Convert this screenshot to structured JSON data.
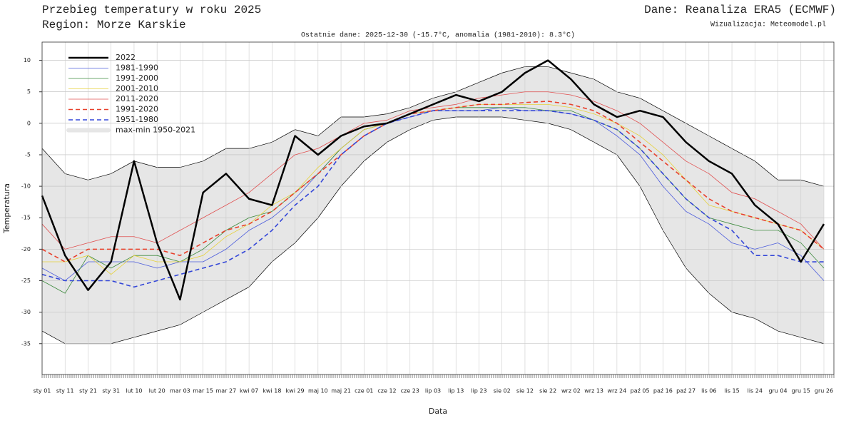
{
  "chart_data": {
    "type": "line",
    "title": "Przebieg temperatury w roku 2025",
    "region": "Region: Morze Karskie",
    "source": "Dane: Reanaliza ERA5 (ECMWF)",
    "credit": "Wizualizacja: Meteomodel.pl",
    "subtitle": "Ostatnie dane: 2025-12-30 (-15.7°C, anomalia (1981-2010): 8.3°C)",
    "y_label": "Temperatura",
    "x_label": "Data",
    "grid": true,
    "legend": "top-left",
    "ylim": [
      -39.9,
      12.9
    ],
    "yticks": [
      -35,
      -30,
      -25,
      -20,
      -15,
      -10,
      -5,
      0,
      5,
      10
    ],
    "categories": [
      "sty 01",
      "sty 11",
      "sty 21",
      "sty 31",
      "lut 10",
      "lut 20",
      "mar 03",
      "mar 15",
      "mar 27",
      "kwi 07",
      "kwi 18",
      "kwi 29",
      "maj 10",
      "maj 21",
      "cze 01",
      "cze 12",
      "cze 23",
      "lip 03",
      "lip 13",
      "lip 23",
      "sie 02",
      "sie 12",
      "sie 22",
      "wrz 02",
      "wrz 13",
      "wrz 24",
      "paź 05",
      "paź 16",
      "paź 27",
      "lis 06",
      "lis 15",
      "lis 24",
      "gru 04",
      "gru 15",
      "gru 26"
    ],
    "band": {
      "name": "max-min 1950-2021",
      "color": "#e6e6e6",
      "high": [
        -4,
        -8,
        -9,
        -8,
        -6,
        -7,
        -7,
        -6,
        -4,
        -4,
        -3,
        -1,
        -2,
        1,
        1,
        1.5,
        2.5,
        4,
        5,
        6.5,
        8,
        9,
        9,
        8,
        7,
        5,
        4,
        2,
        0,
        -2,
        -4,
        -6,
        -9,
        -9,
        -10
      ],
      "low": [
        -33,
        -35,
        -35,
        -35,
        -34,
        -33,
        -32,
        -30,
        -28,
        -26,
        -22,
        -19,
        -15,
        -10,
        -6,
        -3,
        -1,
        0.5,
        1,
        1,
        1,
        0.5,
        0,
        -1,
        -3,
        -5,
        -10,
        -17,
        -23,
        -27,
        -30,
        -31,
        -33,
        -34,
        -35
      ]
    },
    "series": [
      {
        "name": "2022",
        "color": "#000000",
        "width": 2.5,
        "dashed": false,
        "values": [
          -11.5,
          -21,
          -26.5,
          -22,
          -6,
          -19,
          -28,
          -11,
          -8,
          -12,
          -13,
          -2,
          -5,
          -2,
          -0.5,
          0,
          1.5,
          3,
          4.5,
          3.5,
          5,
          8,
          10,
          7,
          3,
          1,
          2,
          1,
          -3,
          -6,
          -8,
          -13,
          -16,
          -22,
          -16
        ]
      },
      {
        "name": "1981-1990",
        "color": "#4a5bdc",
        "width": 0.8,
        "dashed": false,
        "values": [
          -23,
          -25,
          -22,
          -22,
          -22,
          -23,
          -22,
          -22,
          -20,
          -17,
          -15,
          -12,
          -8,
          -4,
          -1,
          0,
          1,
          2,
          2,
          2,
          2.5,
          2,
          2,
          1.5,
          0.5,
          -2,
          -5,
          -10,
          -14,
          -16,
          -19,
          -20,
          -19,
          -21,
          -25
        ]
      },
      {
        "name": "1991-2000",
        "color": "#3c8a3c",
        "width": 0.8,
        "dashed": false,
        "values": [
          -25,
          -27,
          -21,
          -23,
          -21,
          -21,
          -22,
          -20,
          -17,
          -15,
          -14,
          -11,
          -8,
          -4,
          -1,
          0,
          1.5,
          2,
          2.5,
          2.5,
          2.5,
          2.5,
          2,
          2,
          0.5,
          -1,
          -4,
          -8,
          -12,
          -15,
          -16,
          -17,
          -17,
          -19,
          -23
        ]
      },
      {
        "name": "2001-2010",
        "color": "#e6d23c",
        "width": 0.8,
        "dashed": false,
        "values": [
          -22,
          -22,
          -21,
          -24,
          -21,
          -22,
          -22,
          -21,
          -18,
          -16,
          -13,
          -11,
          -7,
          -4,
          -1,
          0,
          1.5,
          2,
          2.5,
          3,
          3,
          3,
          3,
          2.5,
          1.5,
          0,
          -2,
          -5,
          -9,
          -13,
          -14,
          -15,
          -16,
          -17,
          -20
        ]
      },
      {
        "name": "2011-2020",
        "color": "#e05050",
        "width": 0.8,
        "dashed": false,
        "values": [
          -16,
          -20,
          -19,
          -18,
          -18,
          -19,
          -17,
          -15,
          -13,
          -11,
          -8,
          -5,
          -4,
          -2,
          0,
          0.5,
          2,
          2.5,
          3,
          4,
          4.5,
          5,
          5,
          4.5,
          3.5,
          2,
          0,
          -3,
          -6,
          -8,
          -11,
          -12,
          -14,
          -16,
          -20
        ]
      },
      {
        "name": "1991-2020",
        "color": "#e8412c",
        "width": 1.6,
        "dashed": true,
        "values": [
          -20,
          -22,
          -20,
          -20,
          -20,
          -20,
          -21,
          -19,
          -17,
          -16,
          -14,
          -11,
          -8,
          -5,
          -2,
          0,
          1.5,
          2,
          2.5,
          3,
          3,
          3.3,
          3.5,
          3,
          2,
          0,
          -3,
          -6,
          -9,
          -12,
          -14,
          -15,
          -16,
          -17,
          -20
        ]
      },
      {
        "name": "1951-1980",
        "color": "#3346d8",
        "width": 1.6,
        "dashed": true,
        "values": [
          -24,
          -25,
          -25,
          -25,
          -26,
          -25,
          -24,
          -23,
          -22,
          -20,
          -17,
          -13,
          -10,
          -5,
          -2,
          0,
          1,
          2,
          2,
          2,
          2,
          2,
          2,
          1.5,
          0.5,
          -1,
          -4,
          -8,
          -12,
          -15,
          -17,
          -21,
          -21,
          -22,
          -22
        ]
      }
    ]
  }
}
